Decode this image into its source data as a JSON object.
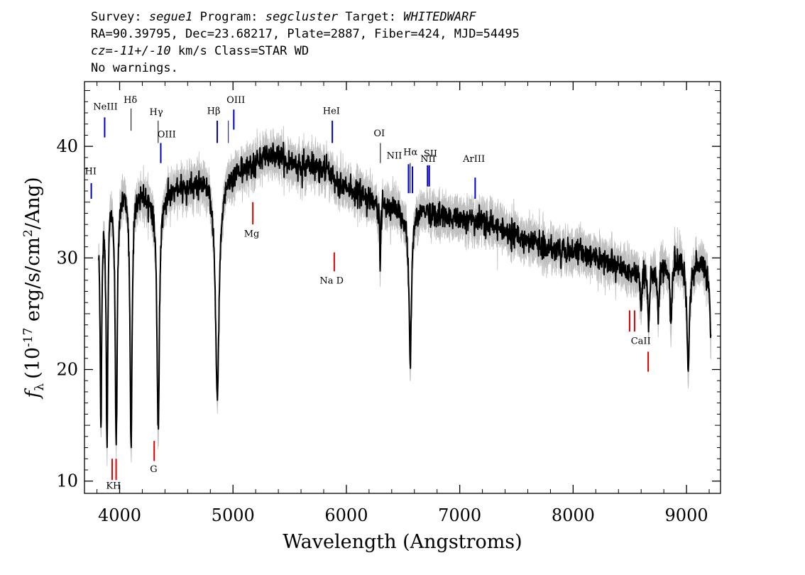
{
  "header": {
    "line1": {
      "survey_label": "Survey:",
      "survey": "segue1",
      "program_label": "Program:",
      "program": "segcluster",
      "target_label": "Target:",
      "target": "WHITEDWARF"
    },
    "line2": "RA=90.39795, Dec=23.68217, Plate=2887, Fiber=424, MJD=54495",
    "line3": {
      "cz_label": "cz",
      "cz_value": "=-11+/-10",
      "cz_rest": "km/s Class=STAR WD"
    },
    "line4": "No warnings."
  },
  "chart_data": {
    "type": "line",
    "title": "",
    "xlabel": "Wavelength (Angstroms)",
    "ylabel": "f_λ (10^-17 erg/s/cm^2/Ang)",
    "ylabel_parts": {
      "symbol": "f",
      "sub": "λ",
      "pre": "(10",
      "exp": "-17",
      "mid": " erg/s/cm",
      "exp2": "2",
      "post": "/Ang)"
    },
    "xlim": [
      3690,
      9300
    ],
    "ylim": [
      8.9,
      45.8
    ],
    "xticks": [
      4000,
      5000,
      6000,
      7000,
      8000,
      9000
    ],
    "xtick_labels": [
      "4000",
      "5000",
      "6000",
      "7000",
      "8000",
      "9000"
    ],
    "yticks": [
      10,
      20,
      30,
      40
    ],
    "ytick_labels": [
      "10",
      "20",
      "30",
      "40"
    ],
    "colors": {
      "spectrum": "#000000",
      "error_band": "#c0c0c0",
      "emission": "#0000cc",
      "absorption": "#dd0000"
    },
    "continuum": [
      [
        3815,
        33
      ],
      [
        3850,
        35
      ],
      [
        3900,
        36.5
      ],
      [
        4000,
        36.5
      ],
      [
        4100,
        36.5
      ],
      [
        4200,
        36
      ],
      [
        4300,
        35.5
      ],
      [
        4400,
        35.8
      ],
      [
        4500,
        36.2
      ],
      [
        4600,
        36.5
      ],
      [
        4700,
        36.8
      ],
      [
        4800,
        36.9
      ],
      [
        4950,
        37
      ],
      [
        5000,
        37.8
      ],
      [
        5100,
        38
      ],
      [
        5200,
        38.5
      ],
      [
        5300,
        39.2
      ],
      [
        5400,
        39.2
      ],
      [
        5500,
        38.6
      ],
      [
        5600,
        38.4
      ],
      [
        5700,
        38.2
      ],
      [
        5800,
        38
      ],
      [
        5900,
        37.2
      ],
      [
        6000,
        36.3
      ],
      [
        6100,
        35.8
      ],
      [
        6200,
        35.3
      ],
      [
        6300,
        35
      ],
      [
        6400,
        34.5
      ],
      [
        6500,
        34
      ],
      [
        6600,
        34.3
      ],
      [
        6700,
        34.4
      ],
      [
        6800,
        34
      ],
      [
        6900,
        33.6
      ],
      [
        7000,
        33.6
      ],
      [
        7200,
        33.2
      ],
      [
        7400,
        32.5
      ],
      [
        7600,
        31.5
      ],
      [
        7800,
        30.9
      ],
      [
        8000,
        30.6
      ],
      [
        8200,
        30.1
      ],
      [
        8400,
        29.3
      ],
      [
        8500,
        28.8
      ],
      [
        8600,
        28.8
      ],
      [
        8700,
        29
      ],
      [
        8800,
        29.7
      ],
      [
        8900,
        30
      ],
      [
        9000,
        29.5
      ],
      [
        9100,
        29.5
      ],
      [
        9150,
        29.4
      ],
      [
        9200,
        27.5
      ],
      [
        9215,
        22.5
      ]
    ],
    "absorption_features": [
      {
        "center": 3835,
        "depth": 19,
        "width": 9
      },
      {
        "center": 3889,
        "depth": 22.5,
        "width": 10
      },
      {
        "center": 3970,
        "depth": 23.3,
        "width": 12
      },
      {
        "center": 4101,
        "depth": 23.8,
        "width": 12
      },
      {
        "center": 4340,
        "depth": 20.9,
        "width": 15
      },
      {
        "center": 4861,
        "depth": 19.3,
        "width": 22
      },
      {
        "center": 6298,
        "depth": 6.5,
        "width": 6
      },
      {
        "center": 6563,
        "depth": 13.5,
        "width": 15
      },
      {
        "center": 8598,
        "depth": 3.5,
        "width": 8
      },
      {
        "center": 8665,
        "depth": 5.2,
        "width": 10
      },
      {
        "center": 8750,
        "depth": 4.6,
        "width": 10
      },
      {
        "center": 8863,
        "depth": 5.8,
        "width": 12
      },
      {
        "center": 9015,
        "depth": 9.5,
        "width": 15
      }
    ],
    "emission_lines": [
      {
        "label": "HI",
        "wave": 3750,
        "y_top": 36.7,
        "y_bot": 35.3,
        "color": "#0000cc",
        "lw": 2
      },
      {
        "label": "NeIII",
        "wave": 3868,
        "y_top": 42.6,
        "y_bot": 40.8,
        "color": "#0000cc",
        "lw": 2
      },
      {
        "label": "Hδ",
        "wave": 4101,
        "y_top": 43.4,
        "y_bot": 41.4,
        "color": "#000000",
        "lw": 1
      },
      {
        "label": "Hγ",
        "wave": 4340,
        "y_top": 42.3,
        "y_bot": 40.3,
        "color": "#000000",
        "lw": 1
      },
      {
        "label": "OIII",
        "wave": 4363,
        "y_top": 40.3,
        "y_bot": 38.5,
        "color": "#0000cc",
        "lw": 2
      },
      {
        "label": "Hβ",
        "wave": 4861,
        "y_top": 42.3,
        "y_bot": 40.3,
        "color": "#0000cc",
        "lw": 2
      },
      {
        "label": "",
        "wave": 4959,
        "y_top": 42.3,
        "y_bot": 40.3,
        "color": "#0000cc",
        "lw": 1
      },
      {
        "label": "OIII",
        "wave": 5007,
        "y_top": 43.3,
        "y_bot": 41.5,
        "color": "#0000cc",
        "lw": 2
      },
      {
        "label": "HeI",
        "wave": 5876,
        "y_top": 42.3,
        "y_bot": 40.3,
        "color": "#0000cc",
        "lw": 2
      },
      {
        "label": "OI",
        "wave": 6300,
        "y_top": 40.3,
        "y_bot": 38.5,
        "color": "#000000",
        "lw": 1
      },
      {
        "label": "NII",
        "wave": 6548,
        "y_top": 38.4,
        "y_bot": 35.8,
        "color": "#0000cc",
        "lw": 2
      },
      {
        "label": "Hα",
        "wave": 6563,
        "y_top": 38.5,
        "y_bot": 35.8,
        "color": "#000000",
        "lw": 1
      },
      {
        "label": "",
        "wave": 6583,
        "y_top": 38.2,
        "y_bot": 35.8,
        "color": "#0000cc",
        "lw": 2
      },
      {
        "label": "SII",
        "wave": 6716,
        "y_top": 38.3,
        "y_bot": 36.4,
        "color": "#0000cc",
        "lw": 2
      },
      {
        "label": "",
        "wave": 6731,
        "y_top": 38.3,
        "y_bot": 36.4,
        "color": "#0000cc",
        "lw": 2
      },
      {
        "label": "ArIII",
        "wave": 7136,
        "y_top": 37.2,
        "y_bot": 35.3,
        "color": "#0000cc",
        "lw": 2
      }
    ],
    "emission_labels": [
      {
        "text": "HI",
        "wave": 3745,
        "y": 37.5
      },
      {
        "text": "NeIII",
        "wave": 3875,
        "y": 43.3
      },
      {
        "text": "Hδ",
        "wave": 4095,
        "y": 43.9
      },
      {
        "text": "Hγ",
        "wave": 4323,
        "y": 42.8
      },
      {
        "text": "OIII",
        "wave": 4415,
        "y": 40.8
      },
      {
        "text": "Hβ",
        "wave": 4830,
        "y": 42.9
      },
      {
        "text": "OIII",
        "wave": 5025,
        "y": 43.9
      },
      {
        "text": "HeI",
        "wave": 5868,
        "y": 42.9
      },
      {
        "text": "OI",
        "wave": 6290,
        "y": 40.9
      },
      {
        "text": "NII",
        "wave": 6423,
        "y": 38.9
      },
      {
        "text": "Hα",
        "wave": 6565,
        "y": 39.2
      },
      {
        "text": "NII",
        "wave": 6720,
        "y": 38.6
      },
      {
        "text": "SII",
        "wave": 6742,
        "y": 39.1
      },
      {
        "text": "ArIII",
        "wave": 7125,
        "y": 38.6
      }
    ],
    "absorption_lines": [
      {
        "label": "K",
        "wave": 3934,
        "y_top": 12.0,
        "y_bot": 10.1
      },
      {
        "label": "H",
        "wave": 3969,
        "y_top": 12.0,
        "y_bot": 10.1
      },
      {
        "label": "G",
        "wave": 4305,
        "y_top": 13.6,
        "y_bot": 11.8
      },
      {
        "label": "Mg",
        "wave": 5175,
        "y_top": 35.0,
        "y_bot": 33.0
      },
      {
        "label": "Na D",
        "wave": 5893,
        "y_top": 30.5,
        "y_bot": 28.8
      },
      {
        "label": "",
        "wave": 8498,
        "y_top": 25.3,
        "y_bot": 23.4
      },
      {
        "label": "",
        "wave": 8542,
        "y_top": 25.3,
        "y_bot": 23.4
      },
      {
        "label": "CaII",
        "wave": 8662,
        "y_top": 21.6,
        "y_bot": 19.8
      }
    ],
    "absorption_labels": [
      {
        "text": "KH",
        "wave": 3946,
        "y": 9.3
      },
      {
        "text": "G",
        "wave": 4300,
        "y": 10.8
      },
      {
        "text": "Mg",
        "wave": 5165,
        "y": 31.9
      },
      {
        "text": "Na D",
        "wave": 5870,
        "y": 27.7
      },
      {
        "text": "CaII",
        "wave": 8597,
        "y": 22.3
      }
    ],
    "noise_sigma": 0.55,
    "error_sigma": 0.9
  }
}
